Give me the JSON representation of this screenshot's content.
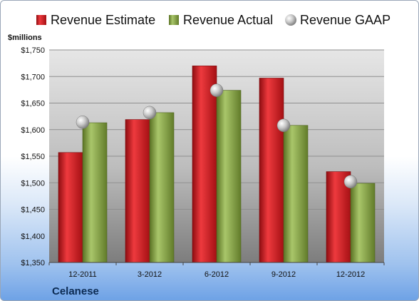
{
  "chart_data": {
    "type": "bar",
    "unit_label": "$millions",
    "company": "Celanese",
    "categories": [
      "12-2011",
      "3-2012",
      "6-2012",
      "9-2012",
      "12-2012"
    ],
    "series": [
      {
        "name": "Revenue Estimate",
        "kind": "bar",
        "color": "#d01820",
        "values": [
          1557,
          1619,
          1720,
          1697,
          1521
        ]
      },
      {
        "name": "Revenue Actual",
        "kind": "bar",
        "color": "#7e9e3c",
        "values": [
          1613,
          1632,
          1674,
          1608,
          1499
        ]
      },
      {
        "name": "Revenue GAAP",
        "kind": "marker",
        "color": "#a9a9a9",
        "values": [
          1614,
          1632,
          1674,
          1608,
          1502
        ]
      }
    ],
    "ylim": [
      1350,
      1750
    ],
    "yticks": [
      1350,
      1400,
      1450,
      1500,
      1550,
      1600,
      1650,
      1700,
      1750
    ],
    "ytick_labels": [
      "$1,350",
      "$1,400",
      "$1,450",
      "$1,500",
      "$1,550",
      "$1,600",
      "$1,650",
      "$1,700",
      "$1,750"
    ],
    "grid": true,
    "legend_position": "top"
  }
}
